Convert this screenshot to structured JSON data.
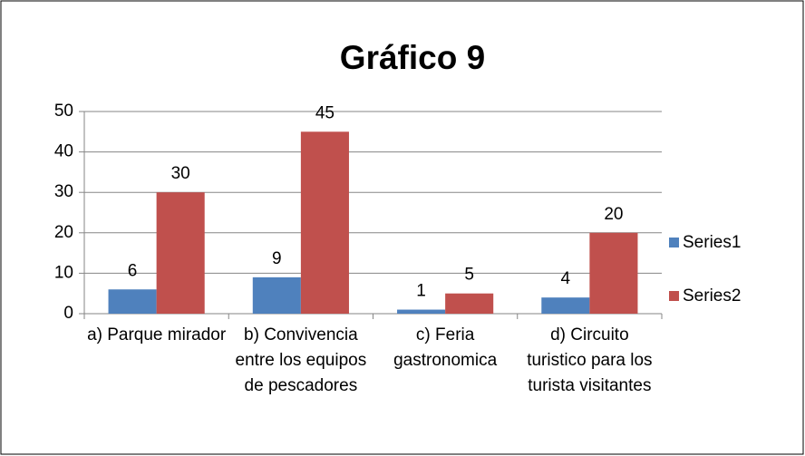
{
  "chart_data": {
    "type": "bar",
    "title": "Gráfico 9",
    "categories": [
      "a) Parque mirador",
      "b) Convivencia entre los equipos de pescadores",
      "c) Feria gastronomica",
      "d)  Circuito turistico para los turista visitantes"
    ],
    "series": [
      {
        "name": "Series1",
        "color": "#4f81bd",
        "values": [
          6,
          9,
          1,
          4
        ]
      },
      {
        "name": "Series2",
        "color": "#c0504d",
        "values": [
          30,
          45,
          5,
          20
        ]
      }
    ],
    "ylim": [
      0,
      50
    ],
    "yticks": [
      0,
      10,
      20,
      30,
      40,
      50
    ],
    "grid": true,
    "legend": "right"
  }
}
